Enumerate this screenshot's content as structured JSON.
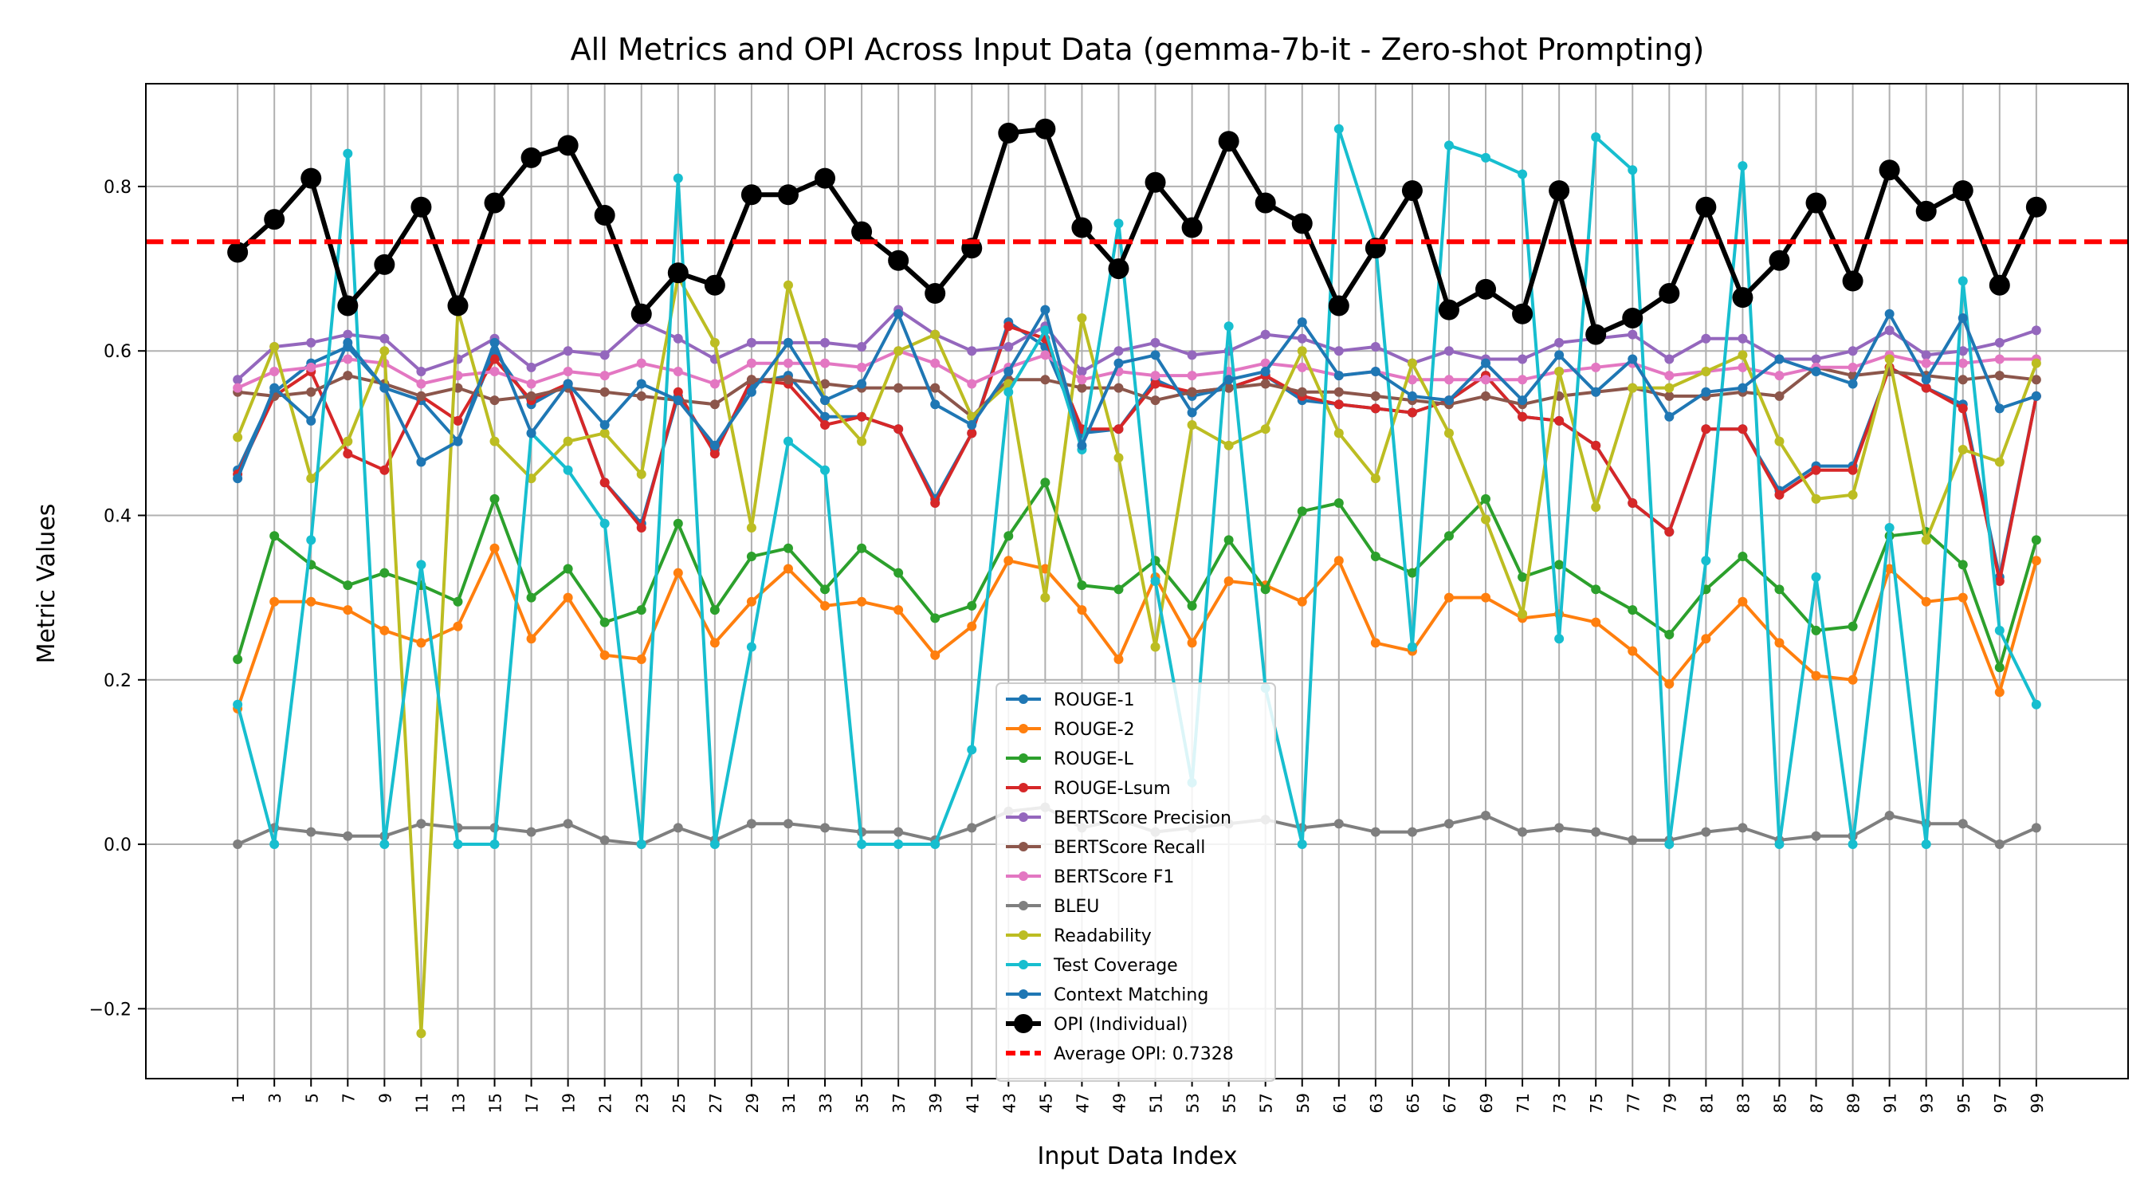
{
  "chart_data": {
    "type": "line",
    "title": "All Metrics and OPI Across Input Data (gemma-7b-it - Zero-shot Prompting)",
    "xlabel": "Input Data Index",
    "ylabel": "Metric Values",
    "ylim": [
      -0.285,
      0.925
    ],
    "yticks": [
      -0.2,
      0.0,
      0.2,
      0.4,
      0.6,
      0.8
    ],
    "ytick_labels": [
      "−0.2",
      "0.0",
      "0.2",
      "0.4",
      "0.6",
      "0.8"
    ],
    "xticks": [
      1,
      3,
      5,
      7,
      9,
      11,
      13,
      15,
      17,
      19,
      21,
      23,
      25,
      27,
      29,
      31,
      33,
      35,
      37,
      39,
      41,
      43,
      45,
      47,
      49,
      51,
      53,
      55,
      57,
      59,
      61,
      63,
      65,
      67,
      69,
      71,
      73,
      75,
      77,
      79,
      81,
      83,
      85,
      87,
      89,
      91,
      93,
      95,
      97,
      99
    ],
    "xlim": [
      -4,
      104
    ],
    "grid": true,
    "legend_position": "lower center",
    "x": [
      1,
      3,
      5,
      7,
      9,
      11,
      13,
      15,
      17,
      19,
      21,
      23,
      25,
      27,
      29,
      31,
      33,
      35,
      37,
      39,
      41,
      43,
      45,
      47,
      49,
      51,
      53,
      55,
      57,
      59,
      61,
      63,
      65,
      67,
      69,
      71,
      73,
      75,
      77,
      79,
      81,
      83,
      85,
      87,
      89,
      91,
      93,
      95,
      97,
      99
    ],
    "series": [
      {
        "name": "ROUGE-1",
        "color": "#1f77b4",
        "values": [
          0.455,
          0.55,
          0.585,
          0.605,
          0.555,
          0.54,
          0.49,
          0.6,
          0.535,
          0.56,
          0.44,
          0.39,
          0.545,
          0.48,
          0.56,
          0.57,
          0.52,
          0.52,
          0.505,
          0.42,
          0.5,
          0.635,
          0.605,
          0.5,
          0.505,
          0.565,
          0.545,
          0.555,
          0.57,
          0.54,
          0.535,
          0.53,
          0.525,
          0.54,
          0.57,
          0.52,
          0.515,
          0.485,
          0.415,
          0.38,
          0.505,
          0.505,
          0.43,
          0.46,
          0.46,
          0.58,
          0.555,
          0.535,
          0.325,
          0.545
        ]
      },
      {
        "name": "ROUGE-2",
        "color": "#ff7f0e",
        "values": [
          0.165,
          0.295,
          0.295,
          0.285,
          0.26,
          0.245,
          0.265,
          0.36,
          0.25,
          0.3,
          0.23,
          0.225,
          0.33,
          0.245,
          0.295,
          0.335,
          0.29,
          0.295,
          0.285,
          0.23,
          0.265,
          0.345,
          0.335,
          0.285,
          0.225,
          0.325,
          0.245,
          0.32,
          0.315,
          0.295,
          0.345,
          0.245,
          0.235,
          0.3,
          0.3,
          0.275,
          0.28,
          0.27,
          0.235,
          0.195,
          0.25,
          0.295,
          0.245,
          0.205,
          0.2,
          0.335,
          0.295,
          0.3,
          0.185,
          0.345
        ]
      },
      {
        "name": "ROUGE-L",
        "color": "#2ca02c",
        "values": [
          0.225,
          0.375,
          0.34,
          0.315,
          0.33,
          0.315,
          0.295,
          0.42,
          0.3,
          0.335,
          0.27,
          0.285,
          0.39,
          0.285,
          0.35,
          0.36,
          0.31,
          0.36,
          0.33,
          0.275,
          0.29,
          0.375,
          0.44,
          0.315,
          0.31,
          0.345,
          0.29,
          0.37,
          0.31,
          0.405,
          0.415,
          0.35,
          0.33,
          0.375,
          0.42,
          0.325,
          0.34,
          0.31,
          0.285,
          0.255,
          0.31,
          0.35,
          0.31,
          0.26,
          0.265,
          0.375,
          0.38,
          0.34,
          0.215,
          0.37
        ]
      },
      {
        "name": "ROUGE-Lsum",
        "color": "#d62728",
        "values": [
          0.45,
          0.545,
          0.575,
          0.475,
          0.455,
          0.545,
          0.515,
          0.59,
          0.54,
          0.56,
          0.44,
          0.385,
          0.55,
          0.475,
          0.565,
          0.56,
          0.51,
          0.52,
          0.505,
          0.415,
          0.5,
          0.63,
          0.615,
          0.505,
          0.505,
          0.56,
          0.55,
          0.555,
          0.57,
          0.545,
          0.535,
          0.53,
          0.525,
          0.54,
          0.57,
          0.52,
          0.515,
          0.485,
          0.415,
          0.38,
          0.505,
          0.505,
          0.425,
          0.455,
          0.455,
          0.58,
          0.555,
          0.53,
          0.32,
          0.545
        ]
      },
      {
        "name": "BERTScore Precision",
        "color": "#9467bd",
        "values": [
          0.565,
          0.605,
          0.61,
          0.62,
          0.615,
          0.575,
          0.59,
          0.615,
          0.58,
          0.6,
          0.595,
          0.635,
          0.615,
          0.59,
          0.61,
          0.61,
          0.61,
          0.605,
          0.65,
          0.62,
          0.6,
          0.605,
          0.63,
          0.575,
          0.6,
          0.61,
          0.595,
          0.6,
          0.62,
          0.615,
          0.6,
          0.605,
          0.585,
          0.6,
          0.59,
          0.59,
          0.61,
          0.615,
          0.62,
          0.59,
          0.615,
          0.615,
          0.59,
          0.59,
          0.6,
          0.625,
          0.595,
          0.6,
          0.61,
          0.625
        ]
      },
      {
        "name": "BERTScore Recall",
        "color": "#8c564b",
        "values": [
          0.55,
          0.545,
          0.55,
          0.57,
          0.56,
          0.545,
          0.555,
          0.54,
          0.545,
          0.555,
          0.55,
          0.545,
          0.54,
          0.535,
          0.565,
          0.565,
          0.56,
          0.555,
          0.555,
          0.555,
          0.52,
          0.565,
          0.565,
          0.555,
          0.555,
          0.54,
          0.55,
          0.555,
          0.56,
          0.55,
          0.55,
          0.545,
          0.54,
          0.535,
          0.545,
          0.535,
          0.545,
          0.55,
          0.555,
          0.545,
          0.545,
          0.55,
          0.545,
          0.58,
          0.57,
          0.575,
          0.57,
          0.565,
          0.57,
          0.565
        ]
      },
      {
        "name": "BERTScore F1",
        "color": "#e377c2",
        "values": [
          0.555,
          0.575,
          0.58,
          0.59,
          0.585,
          0.56,
          0.57,
          0.575,
          0.56,
          0.575,
          0.57,
          0.585,
          0.575,
          0.56,
          0.585,
          0.585,
          0.585,
          0.58,
          0.6,
          0.585,
          0.56,
          0.58,
          0.595,
          0.565,
          0.575,
          0.57,
          0.57,
          0.575,
          0.585,
          0.58,
          0.57,
          0.575,
          0.565,
          0.565,
          0.565,
          0.565,
          0.575,
          0.58,
          0.585,
          0.57,
          0.575,
          0.58,
          0.57,
          0.58,
          0.58,
          0.595,
          0.585,
          0.585,
          0.59,
          0.59
        ]
      },
      {
        "name": "BLEU",
        "color": "#7f7f7f",
        "values": [
          0.0,
          0.02,
          0.015,
          0.01,
          0.01,
          0.025,
          0.02,
          0.02,
          0.015,
          0.025,
          0.005,
          0.0,
          0.02,
          0.005,
          0.025,
          0.025,
          0.02,
          0.015,
          0.015,
          0.005,
          0.02,
          0.04,
          0.045,
          0.02,
          0.03,
          0.015,
          0.02,
          0.025,
          0.03,
          0.02,
          0.025,
          0.015,
          0.015,
          0.025,
          0.035,
          0.015,
          0.02,
          0.015,
          0.005,
          0.005,
          0.015,
          0.02,
          0.005,
          0.01,
          0.01,
          0.035,
          0.025,
          0.025,
          0.0,
          0.02
        ]
      },
      {
        "name": "Readability",
        "color": "#bcbd22",
        "values": [
          0.495,
          0.605,
          0.445,
          0.49,
          0.6,
          -0.23,
          0.65,
          0.49,
          0.445,
          0.49,
          0.5,
          0.45,
          0.69,
          0.61,
          0.385,
          0.68,
          0.54,
          0.49,
          0.6,
          0.62,
          0.52,
          0.56,
          0.3,
          0.64,
          0.47,
          0.24,
          0.51,
          0.485,
          0.505,
          0.6,
          0.5,
          0.445,
          0.585,
          0.5,
          0.395,
          0.28,
          0.575,
          0.41,
          0.555,
          0.555,
          0.575,
          0.595,
          0.49,
          0.42,
          0.425,
          0.59,
          0.37,
          0.48,
          0.465,
          0.585
        ]
      },
      {
        "name": "Test Coverage",
        "color": "#17becf",
        "values": [
          0.17,
          0.0,
          0.37,
          0.84,
          0.0,
          0.34,
          0.0,
          0.0,
          0.5,
          0.455,
          0.39,
          0.0,
          0.81,
          0.0,
          0.24,
          0.49,
          0.455,
          0.0,
          0.0,
          0.0,
          0.115,
          0.55,
          0.625,
          0.48,
          0.755,
          0.32,
          0.075,
          0.63,
          0.19,
          0.0,
          0.87,
          0.73,
          0.24,
          0.85,
          0.835,
          0.815,
          0.25,
          0.86,
          0.82,
          0.0,
          0.345,
          0.825,
          0.0,
          0.325,
          0.0,
          0.385,
          0.0,
          0.685,
          0.26,
          0.17
        ]
      },
      {
        "name": "Context Matching",
        "color": "#1f77b4",
        "values": [
          0.445,
          0.555,
          0.515,
          0.61,
          0.555,
          0.465,
          0.49,
          0.61,
          0.5,
          0.56,
          0.51,
          0.56,
          0.54,
          0.485,
          0.55,
          0.61,
          0.54,
          0.56,
          0.645,
          0.535,
          0.51,
          0.575,
          0.65,
          0.485,
          0.585,
          0.595,
          0.525,
          0.565,
          0.575,
          0.635,
          0.57,
          0.575,
          0.545,
          0.54,
          0.585,
          0.54,
          0.595,
          0.55,
          0.59,
          0.52,
          0.55,
          0.555,
          0.59,
          0.575,
          0.56,
          0.645,
          0.565,
          0.64,
          0.53,
          0.545
        ]
      },
      {
        "name": "OPI (Individual)",
        "color": "#000000",
        "values": [
          0.72,
          0.76,
          0.81,
          0.655,
          0.705,
          0.775,
          0.655,
          0.78,
          0.835,
          0.85,
          0.765,
          0.645,
          0.695,
          0.68,
          0.79,
          0.79,
          0.81,
          0.745,
          0.71,
          0.67,
          0.725,
          0.865,
          0.87,
          0.75,
          0.7,
          0.805,
          0.75,
          0.855,
          0.78,
          0.755,
          0.655,
          0.725,
          0.795,
          0.65,
          0.675,
          0.645,
          0.795,
          0.62,
          0.64,
          0.67,
          0.775,
          0.665,
          0.71,
          0.78,
          0.685,
          0.82,
          0.77,
          0.795,
          0.68,
          0.775
        ]
      }
    ],
    "average_opi": {
      "name": "Average OPI: 0.7328",
      "value": 0.7328,
      "color": "#ff0000"
    }
  }
}
